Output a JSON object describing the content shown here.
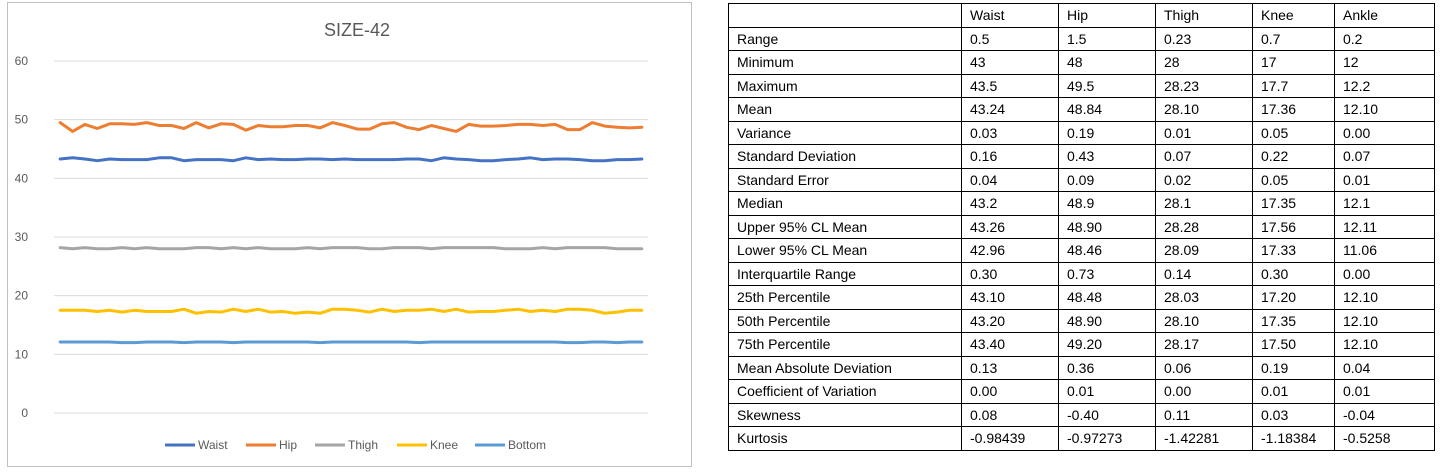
{
  "chart_data": {
    "type": "line",
    "title": "SIZE-42",
    "xlabel": "",
    "ylabel": "",
    "ylim": [
      0,
      60
    ],
    "yticks": [
      "0",
      "10",
      "20",
      "30",
      "40",
      "50",
      "60"
    ],
    "grid": true,
    "legend": "bottom",
    "colors": {
      "Waist": "#4472c4",
      "Hip": "#ed7d31",
      "Thigh": "#a5a5a5",
      "Knee": "#ffc000",
      "Bottom": "#5b9bd5"
    },
    "series": [
      {
        "name": "Waist",
        "values": [
          43.3,
          43.5,
          43.3,
          43.0,
          43.3,
          43.2,
          43.2,
          43.2,
          43.5,
          43.5,
          43.0,
          43.2,
          43.2,
          43.2,
          43.0,
          43.5,
          43.2,
          43.3,
          43.2,
          43.2,
          43.3,
          43.3,
          43.2,
          43.3,
          43.2,
          43.2,
          43.2,
          43.2,
          43.3,
          43.3,
          43.0,
          43.5,
          43.3,
          43.2,
          43.0,
          43.0,
          43.2,
          43.3,
          43.5,
          43.2,
          43.3,
          43.3,
          43.2,
          43.0,
          43.0,
          43.2,
          43.2,
          43.3
        ]
      },
      {
        "name": "Hip",
        "values": [
          49.5,
          48.0,
          49.2,
          48.5,
          49.3,
          49.3,
          49.2,
          49.5,
          49.0,
          49.0,
          48.5,
          49.5,
          48.6,
          49.3,
          49.2,
          48.2,
          49.0,
          48.8,
          48.8,
          49.0,
          49.0,
          48.6,
          49.5,
          49.0,
          48.4,
          48.4,
          49.3,
          49.5,
          48.7,
          48.3,
          49.0,
          48.5,
          48.0,
          49.2,
          48.9,
          48.9,
          49.0,
          49.2,
          49.2,
          49.0,
          49.2,
          48.3,
          48.3,
          49.5,
          48.9,
          48.7,
          48.6,
          48.7
        ]
      },
      {
        "name": "Thigh",
        "values": [
          28.2,
          28.0,
          28.2,
          28.0,
          28.0,
          28.2,
          28.0,
          28.2,
          28.0,
          28.0,
          28.0,
          28.2,
          28.2,
          28.0,
          28.2,
          28.0,
          28.2,
          28.0,
          28.0,
          28.0,
          28.2,
          28.0,
          28.2,
          28.2,
          28.2,
          28.0,
          28.0,
          28.2,
          28.2,
          28.2,
          28.0,
          28.2,
          28.2,
          28.2,
          28.2,
          28.2,
          28.0,
          28.0,
          28.0,
          28.2,
          28.0,
          28.2,
          28.2,
          28.2,
          28.2,
          28.0,
          28.0,
          28.0
        ]
      },
      {
        "name": "Knee",
        "values": [
          17.5,
          17.5,
          17.5,
          17.3,
          17.5,
          17.2,
          17.5,
          17.3,
          17.3,
          17.3,
          17.7,
          17.0,
          17.3,
          17.2,
          17.7,
          17.3,
          17.7,
          17.2,
          17.3,
          17.0,
          17.2,
          17.0,
          17.7,
          17.7,
          17.5,
          17.2,
          17.7,
          17.3,
          17.5,
          17.5,
          17.7,
          17.3,
          17.7,
          17.2,
          17.3,
          17.3,
          17.5,
          17.7,
          17.3,
          17.5,
          17.3,
          17.7,
          17.7,
          17.5,
          17.0,
          17.2,
          17.5,
          17.5
        ]
      },
      {
        "name": "Bottom",
        "values": [
          12.1,
          12.1,
          12.1,
          12.1,
          12.1,
          12.0,
          12.0,
          12.1,
          12.1,
          12.1,
          12.0,
          12.1,
          12.1,
          12.1,
          12.0,
          12.1,
          12.1,
          12.1,
          12.1,
          12.1,
          12.1,
          12.0,
          12.1,
          12.1,
          12.1,
          12.1,
          12.1,
          12.1,
          12.1,
          12.0,
          12.1,
          12.1,
          12.1,
          12.1,
          12.1,
          12.1,
          12.1,
          12.1,
          12.1,
          12.1,
          12.1,
          12.0,
          12.0,
          12.1,
          12.1,
          12.0,
          12.1,
          12.1
        ]
      }
    ]
  },
  "table": {
    "header": [
      "",
      "Waist",
      "Hip",
      "Thigh",
      "Knee",
      "Ankle"
    ],
    "rows": [
      [
        "Range",
        "0.5",
        "1.5",
        "0.23",
        "0.7",
        "0.2"
      ],
      [
        "Minimum",
        "43",
        "48",
        "28",
        "17",
        "12"
      ],
      [
        "Maximum",
        "43.5",
        "49.5",
        "28.23",
        "17.7",
        "12.2"
      ],
      [
        "Mean",
        "43.24",
        "48.84",
        "28.10",
        "17.36",
        "12.10"
      ],
      [
        "Variance",
        "0.03",
        "0.19",
        "0.01",
        "0.05",
        "0.00"
      ],
      [
        "Standard Deviation",
        "0.16",
        "0.43",
        "0.07",
        "0.22",
        "0.07"
      ],
      [
        "Standard Error",
        "0.04",
        "0.09",
        "0.02",
        "0.05",
        "0.01"
      ],
      [
        "Median",
        "43.2",
        "48.9",
        "28.1",
        "17.35",
        "12.1"
      ],
      [
        "Upper 95% CL Mean",
        "43.26",
        "48.90",
        "28.28",
        "17.56",
        "12.11"
      ],
      [
        "Lower 95% CL Mean",
        "42.96",
        "48.46",
        "28.09",
        "17.33",
        "11.06"
      ],
      [
        "Interquartile Range",
        "0.30",
        "0.73",
        "0.14",
        "0.30",
        "0.00"
      ],
      [
        "25th Percentile",
        "43.10",
        "48.48",
        "28.03",
        "17.20",
        "12.10"
      ],
      [
        "50th Percentile",
        "43.20",
        "48.90",
        "28.10",
        "17.35",
        "12.10"
      ],
      [
        "75th Percentile",
        "43.40",
        "49.20",
        "28.17",
        "17.50",
        "12.10"
      ],
      [
        "Mean Absolute Deviation",
        "0.13",
        "0.36",
        "0.06",
        "0.19",
        "0.04"
      ],
      [
        "Coefficient of Variation",
        "0.00",
        "0.01",
        "0.00",
        "0.01",
        "0.01"
      ],
      [
        "Skewness",
        "0.08",
        "-0.40",
        "0.11",
        "0.03",
        "-0.04"
      ],
      [
        "Kurtosis",
        "-0.98439",
        "-0.97273",
        "-1.42281",
        "-1.18384",
        "-0.5258"
      ]
    ]
  }
}
